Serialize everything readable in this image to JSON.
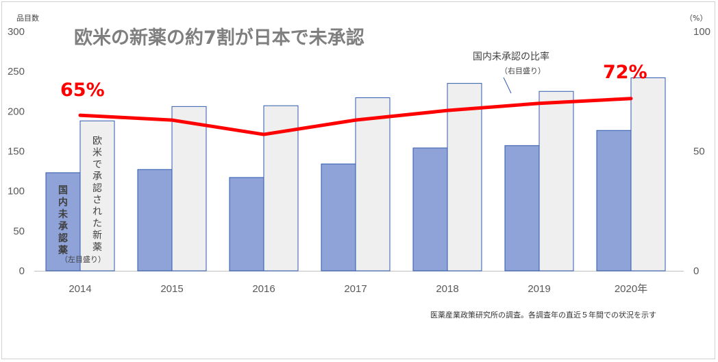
{
  "chart_data": {
    "type": "bar",
    "title": "欧米の新薬の約7割が日本で未承認",
    "categories": [
      "2014",
      "2015",
      "2016",
      "2017",
      "2018",
      "2019",
      "2020年"
    ],
    "series": [
      {
        "name": "国内未承認薬",
        "axis": "left",
        "values": [
          123,
          127,
          117,
          134,
          154,
          157,
          176
        ],
        "color": "#8fa3d9"
      },
      {
        "name": "欧米で承認された新薬",
        "axis": "left",
        "values": [
          188,
          206,
          207,
          217,
          235,
          225,
          242
        ],
        "color": "#efefef"
      },
      {
        "name": "国内未承認の比率",
        "axis": "right",
        "type": "line",
        "values": [
          65,
          63,
          57,
          63,
          67,
          70,
          72
        ],
        "color": "#ff0000"
      }
    ],
    "y_left": {
      "unit": "品目数",
      "ylim": [
        0,
        300
      ],
      "ticks": [
        0,
        50,
        100,
        150,
        200,
        250,
        300
      ]
    },
    "y_right": {
      "unit": "（%）",
      "ylim": [
        0,
        100
      ],
      "ticks": [
        0,
        50,
        100
      ]
    },
    "annotations": {
      "start_pct": "65%",
      "end_pct": "72%",
      "line_label": "国内未承認の比率",
      "line_label_sub": "（右目盛り）",
      "bar1_label": "国内未承認薬",
      "bar2_label": "欧米で承認された新薬",
      "left_axis_note": "（左目盛り）"
    },
    "source": "医薬産業政策研究所の調査。各調査年の直近５年間での状況を示す",
    "grid": false,
    "legend": "inline"
  }
}
